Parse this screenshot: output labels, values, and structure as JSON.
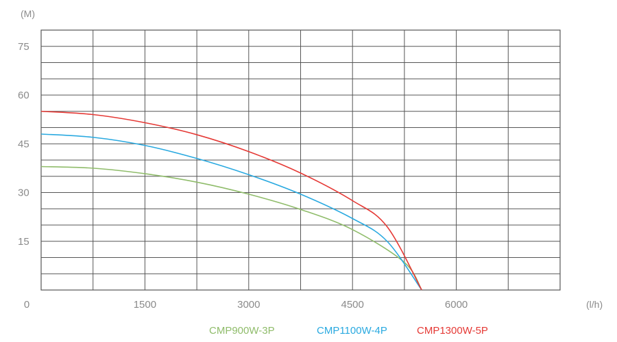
{
  "chart_data": {
    "type": "line",
    "y_unit": "(M)",
    "x_unit": "(l/h)",
    "xlim": [
      0,
      7500
    ],
    "ylim": [
      0,
      80
    ],
    "x_ticks": [
      "0",
      "1500",
      "3000",
      "4500",
      "6000"
    ],
    "x_tick_values": [
      0,
      1500,
      3000,
      4500,
      6000
    ],
    "y_ticks": [
      "15",
      "30",
      "45",
      "60",
      "75"
    ],
    "y_tick_values": [
      15,
      30,
      45,
      60,
      75
    ],
    "x_grid_step": 750,
    "y_grid_step": 5,
    "grid": true,
    "legend_position": "bottom",
    "series": [
      {
        "name": "CMP900W-3P",
        "color": "#8fbc6a",
        "x": [
          0,
          750,
          1500,
          2250,
          3000,
          3750,
          4500,
          5250,
          5500
        ],
        "y": [
          38,
          37.5,
          35.8,
          33.2,
          29.5,
          24.8,
          18.6,
          8.5,
          0
        ]
      },
      {
        "name": "CMP1100W-4P",
        "color": "#29a9e0",
        "x": [
          0,
          750,
          1500,
          2250,
          3000,
          3750,
          4500,
          5000,
          5500
        ],
        "y": [
          48,
          47,
          44.5,
          40.5,
          35.5,
          29.5,
          22,
          15,
          0
        ]
      },
      {
        "name": "CMP1300W-5P",
        "color": "#e53935",
        "x": [
          0,
          750,
          1500,
          2250,
          3000,
          3750,
          4500,
          5000,
          5500
        ],
        "y": [
          55,
          54,
          51.5,
          47.8,
          42.6,
          36,
          27.5,
          19.5,
          0
        ]
      }
    ]
  }
}
